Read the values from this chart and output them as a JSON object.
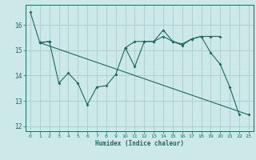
{
  "xlabel": "Humidex (Indice chaleur)",
  "bg_color": "#cce8e8",
  "grid_color": "#aacccc",
  "line_color": "#1a6b60",
  "xlim": [
    -0.5,
    23.5
  ],
  "ylim": [
    11.8,
    16.8
  ],
  "yticks": [
    12,
    13,
    14,
    15,
    16
  ],
  "xticks": [
    0,
    1,
    2,
    3,
    4,
    5,
    6,
    7,
    8,
    9,
    10,
    11,
    12,
    13,
    14,
    15,
    16,
    17,
    18,
    19,
    20,
    21,
    22,
    23
  ],
  "line1_x": [
    0,
    1,
    2,
    3,
    4,
    5,
    6,
    7,
    8,
    9,
    10,
    11,
    12,
    13,
    14,
    15,
    16,
    17,
    18,
    19,
    20,
    21,
    22
  ],
  "line1_y": [
    16.5,
    15.3,
    15.35,
    13.7,
    14.1,
    13.7,
    12.85,
    13.55,
    13.6,
    14.05,
    15.1,
    14.35,
    15.35,
    15.35,
    15.8,
    15.35,
    15.25,
    15.45,
    15.55,
    14.9,
    14.45,
    13.55,
    12.45
  ],
  "line2_x": [
    1,
    2,
    10,
    11,
    12,
    13,
    14,
    15,
    16,
    17,
    18,
    19,
    20
  ],
  "line2_y": [
    15.3,
    15.35,
    15.1,
    15.35,
    15.35,
    15.35,
    15.55,
    15.35,
    15.2,
    15.45,
    15.55,
    15.55,
    15.55
  ],
  "line3_x": [
    1,
    23
  ],
  "line3_y": [
    15.3,
    12.45
  ]
}
